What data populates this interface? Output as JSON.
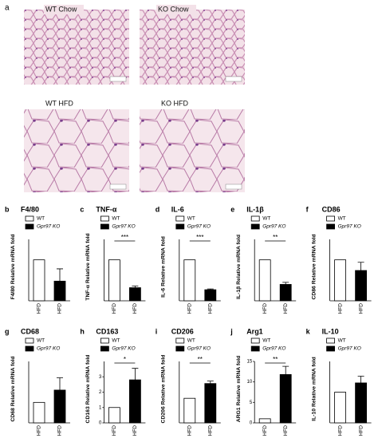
{
  "panel_a": {
    "label": "a",
    "images": [
      {
        "caption": "WT  Chow"
      },
      {
        "caption": "KO  Chow"
      },
      {
        "caption": "WT  HFD"
      },
      {
        "caption": "KO  HFD"
      }
    ]
  },
  "chart_data": [
    {
      "type": "bar",
      "panel": "b",
      "title": "F4/80",
      "ylabel": "F4/80 Relative mRNA fold",
      "categories": [
        "HFD",
        "HFD"
      ],
      "ylim": [
        0,
        1.5
      ],
      "series": [
        {
          "name": "WT",
          "color": "#ffffff",
          "values": [
            1.0,
            null
          ]
        },
        {
          "name": "Gpr97 KO",
          "color": "#000000",
          "values": [
            null,
            0.48
          ],
          "errors": [
            null,
            0.3
          ]
        }
      ]
    },
    {
      "type": "bar",
      "panel": "c",
      "title": "TNF-α",
      "ylabel": "TNF-α Relative mRNA fold",
      "categories": [
        "HFD",
        "HFD"
      ],
      "ylim": [
        0,
        1.5
      ],
      "annotation": "***",
      "series": [
        {
          "name": "WT",
          "color": "#ffffff",
          "values": [
            1.0,
            null
          ]
        },
        {
          "name": "Gpr97 KO",
          "color": "#000000",
          "values": [
            null,
            0.32
          ],
          "errors": [
            null,
            0.04
          ]
        }
      ]
    },
    {
      "type": "bar",
      "panel": "d",
      "title": "IL-6",
      "ylabel": "IL-6 Relative mRNA fold",
      "categories": [
        "HFD",
        "HFD"
      ],
      "ylim": [
        0,
        1.5
      ],
      "annotation": "***",
      "series": [
        {
          "name": "WT",
          "color": "#ffffff",
          "values": [
            1.0,
            null
          ]
        },
        {
          "name": "Gpr97 KO",
          "color": "#000000",
          "values": [
            null,
            0.27
          ],
          "errors": [
            null,
            0.02
          ]
        }
      ]
    },
    {
      "type": "bar",
      "panel": "e",
      "title": "IL-1β",
      "ylabel": "IL-1β Relative mRNA fold",
      "categories": [
        "HFD",
        "HFD"
      ],
      "ylim": [
        0,
        1.5
      ],
      "annotation": "**",
      "series": [
        {
          "name": "WT",
          "color": "#ffffff",
          "values": [
            1.0,
            null
          ]
        },
        {
          "name": "Gpr97 KO",
          "color": "#000000",
          "values": [
            null,
            0.4
          ],
          "errors": [
            null,
            0.05
          ]
        }
      ]
    },
    {
      "type": "bar",
      "panel": "f",
      "title": "CD86",
      "ylabel": "CD86 Relative mRNA fold",
      "categories": [
        "HFD",
        "HFD"
      ],
      "ylim": [
        0,
        1.5
      ],
      "series": [
        {
          "name": "WT",
          "color": "#ffffff",
          "values": [
            1.0,
            null
          ]
        },
        {
          "name": "Gpr97 KO",
          "color": "#000000",
          "values": [
            null,
            0.74
          ],
          "errors": [
            null,
            0.2
          ]
        }
      ]
    },
    {
      "type": "bar",
      "panel": "g",
      "title": "CD68",
      "ylabel": "CD68 Relative mRNA fold",
      "categories": [
        "HFD",
        "HFD"
      ],
      "ylim": [
        0,
        3
      ],
      "series": [
        {
          "name": "WT",
          "color": "#ffffff",
          "values": [
            1.0,
            null
          ]
        },
        {
          "name": "Gpr97 KO",
          "color": "#000000",
          "values": [
            null,
            1.6
          ],
          "errors": [
            null,
            0.6
          ]
        }
      ]
    },
    {
      "type": "bar",
      "panel": "h",
      "title": "CD163",
      "ylabel": "CD163 Relative mRNA fold",
      "categories": [
        "HFD",
        "HFD"
      ],
      "ylim": [
        0,
        4
      ],
      "yticks": [
        0,
        1,
        2,
        3
      ],
      "annotation": "*",
      "series": [
        {
          "name": "WT",
          "color": "#ffffff",
          "values": [
            1.0,
            null
          ]
        },
        {
          "name": "Gpr97 KO",
          "color": "#000000",
          "values": [
            null,
            2.8
          ],
          "errors": [
            null,
            0.75
          ]
        }
      ]
    },
    {
      "type": "bar",
      "panel": "i",
      "title": "CD206",
      "ylabel": "CD206 Relative mRNA fold",
      "categories": [
        "HFD",
        "HFD"
      ],
      "ylim": [
        0,
        2.5
      ],
      "annotation": "**",
      "series": [
        {
          "name": "WT",
          "color": "#ffffff",
          "values": [
            1.0,
            null
          ]
        },
        {
          "name": "Gpr97 KO",
          "color": "#000000",
          "values": [
            null,
            1.6
          ],
          "errors": [
            null,
            0.1
          ]
        }
      ]
    },
    {
      "type": "bar",
      "panel": "j",
      "title": "Arg1",
      "ylabel": "ARG1 Relative mRNA fold",
      "categories": [
        "HFD",
        "HFD"
      ],
      "ylim": [
        0,
        15
      ],
      "yticks": [
        0,
        5,
        10,
        15
      ],
      "annotation": "**",
      "series": [
        {
          "name": "WT",
          "color": "#ffffff",
          "values": [
            1.0,
            null
          ]
        },
        {
          "name": "Gpr97 KO",
          "color": "#000000",
          "values": [
            null,
            11.8
          ],
          "errors": [
            null,
            2.0
          ]
        }
      ]
    },
    {
      "type": "bar",
      "panel": "k",
      "title": "IL-10",
      "ylabel": "IL-10 Relative mRNA fold",
      "categories": [
        "HFD",
        "HFD"
      ],
      "ylim": [
        0,
        2
      ],
      "series": [
        {
          "name": "WT",
          "color": "#ffffff",
          "values": [
            1.0,
            null
          ]
        },
        {
          "name": "Gpr97 KO",
          "color": "#000000",
          "values": [
            null,
            1.3
          ],
          "errors": [
            null,
            0.22
          ]
        }
      ]
    }
  ]
}
